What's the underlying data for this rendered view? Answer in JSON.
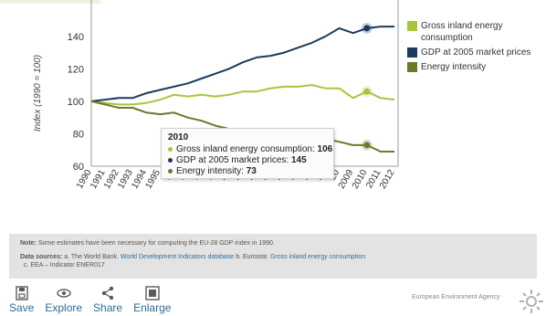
{
  "page": {
    "top_fragment": ""
  },
  "chart_data": {
    "type": "line",
    "title": "",
    "xlabel": "",
    "ylabel": "Index (1990 = 100)",
    "ylim": [
      60,
      150
    ],
    "y_ticks": [
      60,
      80,
      100,
      120,
      140
    ],
    "x": [
      "1990",
      "1991",
      "1992",
      "1993",
      "1994",
      "1995",
      "1996",
      "1997",
      "1998",
      "1999",
      "2000",
      "2001",
      "2002",
      "2003",
      "2004",
      "2005",
      "2006",
      "2007",
      "2008",
      "2009",
      "2010",
      "2011",
      "2012"
    ],
    "x_tick_labels": [
      "1990",
      "1991",
      "1992",
      "1993",
      "1994",
      "1995",
      "19",
      "19",
      "19",
      "19",
      "20",
      "20",
      "20",
      "20",
      "20",
      "20",
      "20",
      "20",
      "20",
      "2009",
      "2010",
      "2011",
      "2012"
    ],
    "series": [
      {
        "name": "Gross inland energy consumption",
        "color": "#a8c63c",
        "values": [
          100,
          99,
          98,
          98,
          99,
          101,
          104,
          103,
          104,
          103,
          104,
          106,
          106,
          108,
          109,
          109,
          110,
          108,
          108,
          102,
          106,
          102,
          101
        ]
      },
      {
        "name": "GDP at 2005 market prices",
        "color": "#1b3c5e",
        "values": [
          100,
          101,
          102,
          102,
          105,
          107,
          109,
          111,
          114,
          117,
          120,
          124,
          127,
          128,
          130,
          133,
          136,
          140,
          145,
          142,
          145,
          146,
          146
        ]
      },
      {
        "name": "Energy intensity",
        "color": "#6b7a2c",
        "values": [
          100,
          98,
          96,
          96,
          93,
          92,
          93,
          90,
          88,
          85,
          83,
          83,
          82,
          81,
          81,
          80,
          79,
          77,
          75,
          73,
          73,
          69,
          69
        ]
      }
    ],
    "grid": false,
    "legend_position": "right",
    "highlight": {
      "x": "2010"
    }
  },
  "legend": {
    "items": [
      {
        "label": "Gross inland energy consumption",
        "color": "#a8c63c"
      },
      {
        "label": "GDP at 2005 market prices",
        "color": "#1b3c5e"
      },
      {
        "label": "Energy intensity",
        "color": "#6b7a2c"
      }
    ]
  },
  "tooltip": {
    "title": "2010",
    "rows": [
      {
        "label": "Gross inland energy consumption:",
        "value": "106",
        "color": "#a8c63c"
      },
      {
        "label": "GDP at 2005 market prices:",
        "value": "145",
        "color": "#1b3c5e"
      },
      {
        "label": "Energy intensity:",
        "value": "73",
        "color": "#6b7a2c"
      }
    ]
  },
  "notes": {
    "note_label": "Note:",
    "note_text": " Some estimates have been necessary for computing the EU-28 GDP index in 1990.",
    "sources_label": "Data sources:",
    "sources_a": " a. The World Bank. ",
    "sources_a_link": "World Development Indicators database",
    "sources_b": "  b. Eurostat. ",
    "sources_b_link": "Gross inland energy consumption",
    "sources_c": "c. EEA – Indicator ENER017"
  },
  "toolbar": {
    "save_label": "Save",
    "explore_label": "Explore",
    "share_label": "Share",
    "enlarge_label": "Enlarge"
  },
  "footer": {
    "agency": "European Environment Agency"
  }
}
